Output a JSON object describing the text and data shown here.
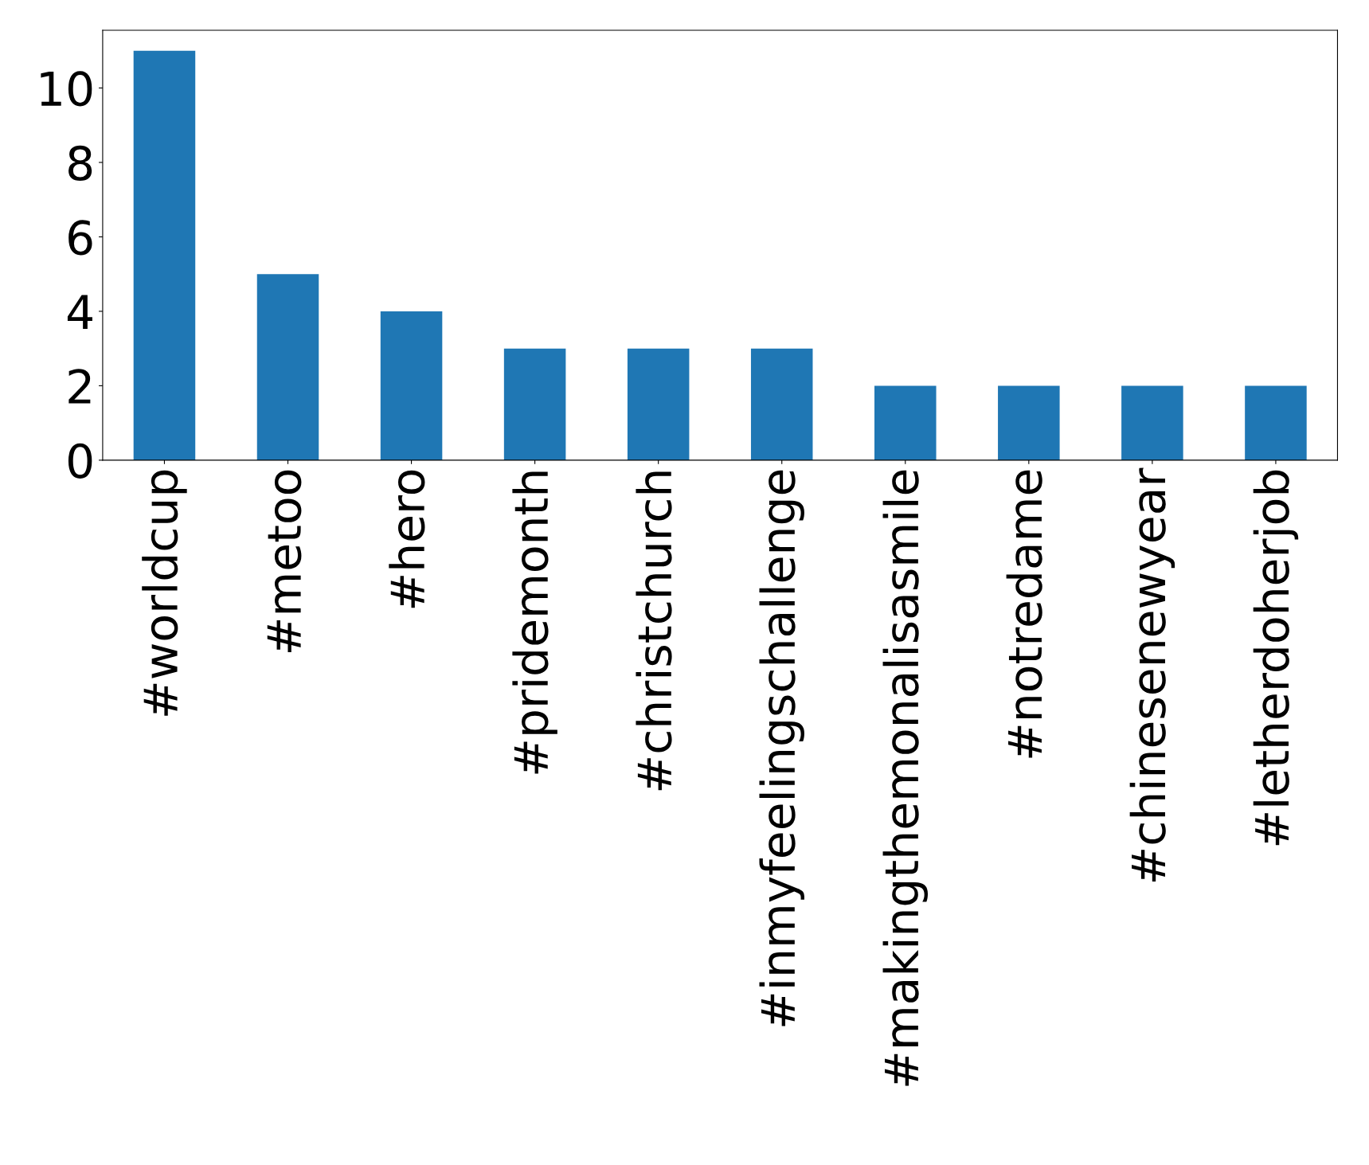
{
  "chart_data": {
    "type": "bar",
    "categories": [
      "#worldcup",
      "#metoo",
      "#hero",
      "#pridemonth",
      "#christchurch",
      "#inmyfeelingschallenge",
      "#makingthemonalisasmile",
      "#notredame",
      "#chinesenewyear",
      "#letherdoherjob"
    ],
    "values": [
      11,
      5,
      4,
      3,
      3,
      3,
      2,
      2,
      2,
      2
    ],
    "color": "#1f77b4",
    "ylim": [
      0,
      11.55
    ],
    "yticks": [
      0,
      2,
      4,
      6,
      8,
      10
    ],
    "grid": false,
    "legend": false
  }
}
